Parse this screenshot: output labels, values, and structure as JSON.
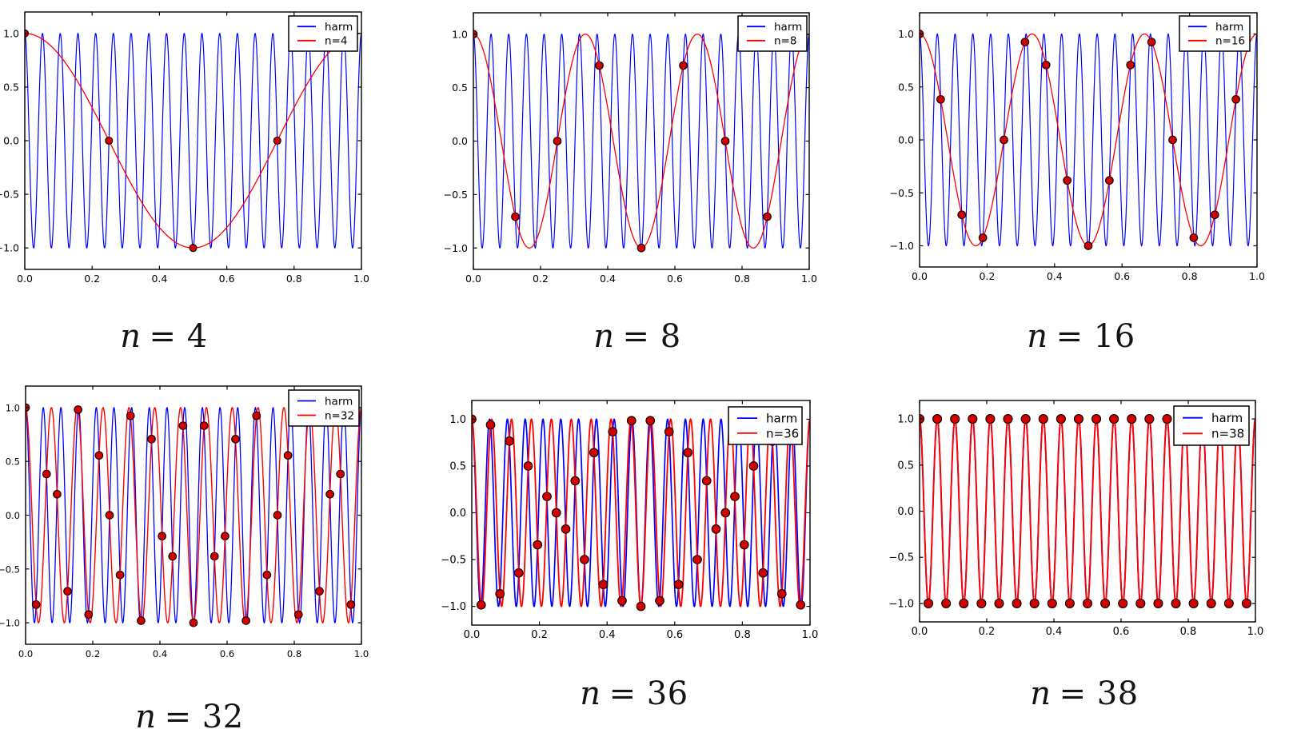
{
  "figure": {
    "background": "#ffffff",
    "description_labels": {
      "harm_legend": "harm"
    }
  },
  "chart_data": [
    {
      "type": "line",
      "title": {
        "lhs": "n",
        "rhs": "= 4"
      },
      "n": 4,
      "legend": {
        "entries": [
          "harm",
          "n=4"
        ],
        "position": "upper right"
      },
      "colors": {
        "harm": "#0000ff",
        "alias": "#ff0000",
        "marker_fill": "#d40000",
        "marker_edge": "#000000"
      },
      "xlim": [
        0,
        1
      ],
      "ylim": [
        -1.2,
        1.2
      ],
      "grid": false,
      "x_ticks": {
        "values": [
          0,
          0.2,
          0.4,
          0.6,
          0.8,
          1.0
        ],
        "labels": [
          "0.0",
          "0.2",
          "0.4",
          "0.6",
          "0.8",
          "1.0"
        ]
      },
      "y_ticks": {
        "values": [
          1.0,
          0.5,
          0.0,
          -0.5,
          -1.0
        ],
        "labels": [
          "1.0",
          "0.5",
          "0.0",
          "−0.5",
          "−1.0"
        ]
      },
      "harm": {
        "type": "cosine",
        "frequency": 19,
        "amplitude": 1,
        "t_range": [
          0,
          1
        ]
      },
      "alias": {
        "type": "cosine",
        "frequency": 1,
        "amplitude": 1,
        "t_range": [
          0,
          1
        ]
      },
      "samples": {
        "x": [
          0,
          0.25,
          0.5,
          0.75
        ],
        "y": [
          1,
          0,
          -1,
          0
        ]
      }
    },
    {
      "type": "line",
      "title": {
        "lhs": "n",
        "rhs": "= 8"
      },
      "n": 8,
      "legend": {
        "entries": [
          "harm",
          "n=8"
        ],
        "position": "upper right"
      },
      "colors": {
        "harm": "#0000ff",
        "alias": "#ff0000",
        "marker_fill": "#d40000",
        "marker_edge": "#000000"
      },
      "xlim": [
        0,
        1
      ],
      "ylim": [
        -1.2,
        1.2
      ],
      "grid": false,
      "x_ticks": {
        "values": [
          0,
          0.2,
          0.4,
          0.6,
          0.8,
          1.0
        ],
        "labels": [
          "0.0",
          "0.2",
          "0.4",
          "0.6",
          "0.8",
          "1.0"
        ]
      },
      "y_ticks": {
        "values": [
          1.0,
          0.5,
          0.0,
          -0.5,
          -1.0
        ],
        "labels": [
          "1.0",
          "0.5",
          "0.0",
          "−0.5",
          "−1.0"
        ]
      },
      "harm": {
        "type": "cosine",
        "frequency": 19,
        "amplitude": 1,
        "t_range": [
          0,
          1
        ]
      },
      "alias": {
        "type": "cosine",
        "frequency": 3,
        "amplitude": 1,
        "t_range": [
          0,
          1
        ]
      },
      "samples": {
        "x": [
          0,
          0.125,
          0.25,
          0.375,
          0.5,
          0.625,
          0.75,
          0.875
        ],
        "y": [
          1,
          -0.7071,
          0,
          0.7071,
          -1,
          0.7071,
          0,
          -0.7071
        ]
      }
    },
    {
      "type": "line",
      "title": {
        "lhs": "n",
        "rhs": "= 16"
      },
      "n": 16,
      "legend": {
        "entries": [
          "harm",
          "n=16"
        ],
        "position": "upper right"
      },
      "colors": {
        "harm": "#0000ff",
        "alias": "#ff0000",
        "marker_fill": "#d40000",
        "marker_edge": "#000000"
      },
      "xlim": [
        0,
        1
      ],
      "ylim": [
        -1.2,
        1.2
      ],
      "grid": false,
      "x_ticks": {
        "values": [
          0,
          0.2,
          0.4,
          0.6,
          0.8,
          1.0
        ],
        "labels": [
          "0.0",
          "0.2",
          "0.4",
          "0.6",
          "0.8",
          "1.0"
        ]
      },
      "y_ticks": {
        "values": [
          1.0,
          0.5,
          0.0,
          -0.5,
          -1.0
        ],
        "labels": [
          "1.0",
          "0.5",
          "0.0",
          "−0.5",
          "−1.0"
        ]
      },
      "harm": {
        "type": "cosine",
        "frequency": 19,
        "amplitude": 1,
        "t_range": [
          0,
          1
        ]
      },
      "alias": {
        "type": "cosine",
        "frequency": 3,
        "amplitude": 1,
        "t_range": [
          0,
          1
        ]
      },
      "samples": {
        "x": [
          0,
          0.0625,
          0.125,
          0.1875,
          0.25,
          0.3125,
          0.375,
          0.4375,
          0.5,
          0.5625,
          0.625,
          0.6875,
          0.75,
          0.8125,
          0.875,
          0.9375
        ],
        "y": [
          1,
          0.3827,
          -0.7071,
          -0.9239,
          0,
          0.9239,
          0.7071,
          -0.3827,
          -1,
          -0.3827,
          0.7071,
          0.9239,
          0,
          -0.9239,
          -0.7071,
          0.3827
        ]
      }
    },
    {
      "type": "line",
      "title": {
        "lhs": "n",
        "rhs": "= 32"
      },
      "n": 32,
      "legend": {
        "entries": [
          "harm",
          "n=32"
        ],
        "position": "upper right"
      },
      "colors": {
        "harm": "#0000ff",
        "alias": "#ff0000",
        "marker_fill": "#d40000",
        "marker_edge": "#000000"
      },
      "xlim": [
        0,
        1
      ],
      "ylim": [
        -1.2,
        1.2
      ],
      "grid": false,
      "x_ticks": {
        "values": [
          0,
          0.2,
          0.4,
          0.6,
          0.8,
          1.0
        ],
        "labels": [
          "0.0",
          "0.2",
          "0.4",
          "0.6",
          "0.8",
          "1.0"
        ]
      },
      "y_ticks": {
        "values": [
          1.0,
          0.5,
          0.0,
          -0.5,
          -1.0
        ],
        "labels": [
          "1.0",
          "0.5",
          "0.0",
          "−0.5",
          "−1.0"
        ]
      },
      "harm": {
        "type": "cosine",
        "frequency": 19,
        "amplitude": 1,
        "t_range": [
          0,
          1
        ]
      },
      "alias": {
        "type": "cosine",
        "frequency": 13,
        "amplitude": 1,
        "t_range": [
          0,
          1
        ]
      },
      "samples": {
        "x": [
          0,
          0.0313,
          0.0625,
          0.0938,
          0.125,
          0.1563,
          0.1875,
          0.2188,
          0.25,
          0.2813,
          0.3125,
          0.3438,
          0.375,
          0.4063,
          0.4375,
          0.4688,
          0.5,
          0.5313,
          0.5625,
          0.5938,
          0.625,
          0.6563,
          0.6875,
          0.7188,
          0.75,
          0.7813,
          0.8125,
          0.8438,
          0.875,
          0.9063,
          0.9375,
          0.9688
        ],
        "y": [
          1,
          -0.8315,
          0.3827,
          0.1951,
          -0.7071,
          0.9808,
          -0.9239,
          0.5556,
          0,
          -0.5556,
          0.9239,
          -0.9808,
          0.7071,
          -0.1951,
          -0.3827,
          0.8315,
          -1,
          0.8315,
          -0.3827,
          -0.1951,
          0.7071,
          -0.9808,
          0.9239,
          -0.5556,
          0,
          0.5556,
          -0.9239,
          0.9808,
          -0.7071,
          0.1951,
          0.3827,
          -0.8315
        ]
      }
    },
    {
      "type": "line",
      "title": {
        "lhs": "n",
        "rhs": "= 36"
      },
      "n": 36,
      "legend": {
        "entries": [
          "harm",
          "n=36"
        ],
        "position": "upper right"
      },
      "colors": {
        "harm": "#0000ff",
        "alias": "#ff0000",
        "marker_fill": "#d40000",
        "marker_edge": "#000000"
      },
      "xlim": [
        0,
        1
      ],
      "ylim": [
        -1.2,
        1.2
      ],
      "grid": false,
      "x_ticks": {
        "values": [
          0,
          0.2,
          0.4,
          0.6,
          0.8,
          1.0
        ],
        "labels": [
          "0.0",
          "0.2",
          "0.4",
          "0.6",
          "0.8",
          "1.0"
        ]
      },
      "y_ticks": {
        "values": [
          1.0,
          0.5,
          0.0,
          -0.5,
          -1.0
        ],
        "labels": [
          "1.0",
          "0.5",
          "0.0",
          "−0.5",
          "−1.0"
        ]
      },
      "harm": {
        "type": "cosine",
        "frequency": 19,
        "amplitude": 1,
        "t_range": [
          0,
          1
        ]
      },
      "alias": {
        "type": "cosine",
        "frequency": 17,
        "amplitude": 1,
        "t_range": [
          0,
          1
        ]
      },
      "samples": {
        "x": [
          0,
          0.0278,
          0.0556,
          0.0833,
          0.1111,
          0.1389,
          0.1667,
          0.1944,
          0.2222,
          0.25,
          0.2778,
          0.3056,
          0.3333,
          0.3611,
          0.3889,
          0.4167,
          0.4444,
          0.4722,
          0.5,
          0.5278,
          0.5556,
          0.5833,
          0.6111,
          0.6389,
          0.6667,
          0.6944,
          0.7222,
          0.75,
          0.7778,
          0.8056,
          0.8333,
          0.8611,
          0.8889,
          0.9167,
          0.9444,
          0.9722
        ],
        "y": [
          1,
          -0.9848,
          0.9397,
          -0.866,
          0.766,
          -0.6428,
          0.5,
          -0.342,
          0.1736,
          0,
          -0.1736,
          0.342,
          -0.5,
          0.6428,
          -0.766,
          0.866,
          -0.9397,
          0.9848,
          -1,
          0.9848,
          -0.9397,
          0.866,
          -0.766,
          0.6428,
          -0.5,
          0.342,
          -0.1736,
          0,
          0.1736,
          -0.342,
          0.5,
          -0.6428,
          0.766,
          -0.866,
          0.9397,
          -0.9848
        ]
      }
    },
    {
      "type": "line",
      "title": {
        "lhs": "n",
        "rhs": "= 38"
      },
      "n": 38,
      "legend": {
        "entries": [
          "harm",
          "n=38"
        ],
        "position": "upper right"
      },
      "colors": {
        "harm": "#0000ff",
        "alias": "#ff0000",
        "marker_fill": "#d40000",
        "marker_edge": "#000000"
      },
      "xlim": [
        0,
        1
      ],
      "ylim": [
        -1.2,
        1.2
      ],
      "grid": false,
      "x_ticks": {
        "values": [
          0,
          0.2,
          0.4,
          0.6,
          0.8,
          1.0
        ],
        "labels": [
          "0.0",
          "0.2",
          "0.4",
          "0.6",
          "0.8",
          "1.0"
        ]
      },
      "y_ticks": {
        "values": [
          1.0,
          0.5,
          0.0,
          -0.5,
          -1.0
        ],
        "labels": [
          "1.0",
          "0.5",
          "0.0",
          "−0.5",
          "−1.0"
        ]
      },
      "harm": {
        "type": "cosine",
        "frequency": 19,
        "amplitude": 1,
        "t_range": [
          0,
          1
        ]
      },
      "alias": {
        "type": "cosine",
        "frequency": 19,
        "amplitude": 1,
        "t_range": [
          0,
          1
        ]
      },
      "samples": {
        "x": [
          0,
          0.0263,
          0.0526,
          0.0789,
          0.1053,
          0.1316,
          0.1579,
          0.1842,
          0.2105,
          0.2368,
          0.2632,
          0.2895,
          0.3158,
          0.3421,
          0.3684,
          0.3947,
          0.4211,
          0.4474,
          0.4737,
          0.5,
          0.5263,
          0.5526,
          0.5789,
          0.6053,
          0.6316,
          0.6579,
          0.6842,
          0.7105,
          0.7368,
          0.7632,
          0.7895,
          0.8158,
          0.8421,
          0.8684,
          0.8947,
          0.9211,
          0.9474,
          0.9737
        ],
        "y": [
          1,
          -1,
          1,
          -1,
          1,
          -1,
          1,
          -1,
          1,
          -1,
          1,
          -1,
          1,
          -1,
          1,
          -1,
          1,
          -1,
          1,
          -1,
          1,
          -1,
          1,
          -1,
          1,
          -1,
          1,
          -1,
          1,
          -1,
          1,
          -1,
          1,
          -1,
          1,
          -1,
          1,
          -1
        ]
      }
    }
  ]
}
